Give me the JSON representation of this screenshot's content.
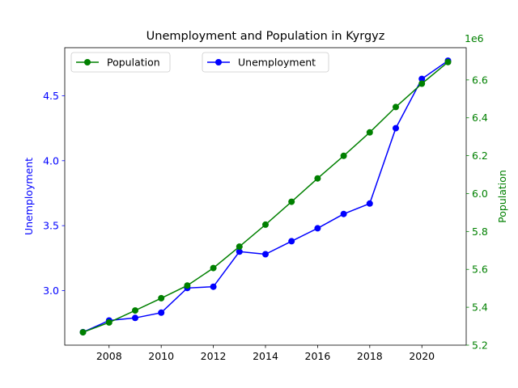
{
  "chart_data": {
    "type": "line",
    "title": "Unemployment and Population in Kyrgyz",
    "x": [
      2007,
      2008,
      2009,
      2010,
      2011,
      2012,
      2013,
      2014,
      2015,
      2016,
      2017,
      2018,
      2019,
      2020,
      2021
    ],
    "xlim": [
      2006.3,
      2021.7
    ],
    "xticks": [
      2008,
      2010,
      2012,
      2014,
      2016,
      2018,
      2020
    ],
    "grid": false,
    "series": [
      {
        "name": "Unemployment",
        "axis": "left",
        "color": "#0000ff",
        "values": [
          2.68,
          2.77,
          2.79,
          2.83,
          3.02,
          3.03,
          3.3,
          3.28,
          3.38,
          3.48,
          3.59,
          3.67,
          4.25,
          4.63,
          4.77
        ]
      },
      {
        "name": "Population",
        "axis": "right",
        "color": "#008000",
        "values": [
          5268000,
          5320000,
          5383000,
          5448000,
          5515000,
          5607000,
          5720000,
          5836000,
          5957000,
          6080000,
          6199000,
          6323000,
          6457000,
          6580000,
          6694000
        ]
      }
    ],
    "y_left": {
      "label": "Unemployment",
      "color": "#0000ff",
      "ylim": [
        2.58,
        4.87
      ],
      "ticks": [
        3.0,
        3.5,
        4.0,
        4.5
      ],
      "tick_labels": [
        "3.0",
        "3.5",
        "4.0",
        "4.5"
      ]
    },
    "y_right": {
      "label": "Population",
      "color": "#008000",
      "ylim": [
        5200000,
        6770000
      ],
      "ticks": [
        5200000,
        5400000,
        5600000,
        5800000,
        6000000,
        6200000,
        6400000,
        6600000
      ],
      "tick_labels": [
        "5.2",
        "5.4",
        "5.6",
        "5.8",
        "6.0",
        "6.2",
        "6.4",
        "6.6"
      ],
      "offset_label": "1e6"
    },
    "legends": [
      {
        "series": "Population",
        "placement": "top-left"
      },
      {
        "series": "Unemployment",
        "placement": "top-center"
      }
    ]
  }
}
